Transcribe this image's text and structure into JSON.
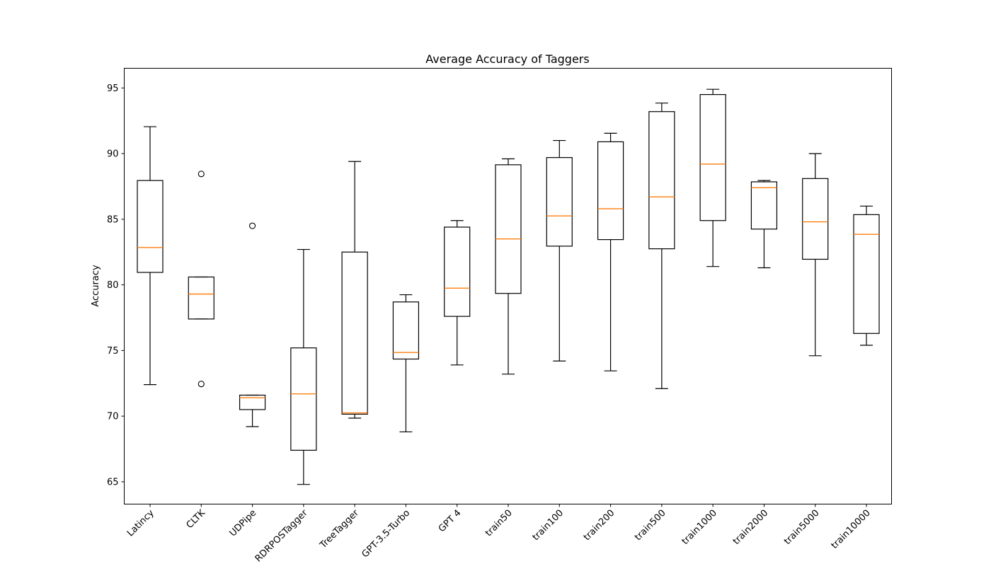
{
  "chart_data": {
    "type": "box",
    "title": "Average Accuracy of Taggers",
    "xlabel": "",
    "ylabel": "Accuracy",
    "ylim": [
      63.3,
      96.5
    ],
    "yticks": [
      65,
      70,
      75,
      80,
      85,
      90,
      95
    ],
    "grid": false,
    "colors": {
      "box": "#000000",
      "median": "#ff7f0e",
      "outlier": "#000000"
    },
    "categories": [
      "Latincy",
      "CLTK",
      "UDPipe",
      "RDRPOSTagger",
      "TreeTagger",
      "GPT-3.5-Turbo",
      "GPT 4",
      "train50",
      "train100",
      "train200",
      "train500",
      "train1000",
      "train2000",
      "train5000",
      "train10000"
    ],
    "boxes": [
      {
        "whisker_low": 72.4,
        "q1": 80.95,
        "median": 82.85,
        "q3": 87.95,
        "whisker_high": 92.05,
        "outliers": []
      },
      {
        "whisker_low": 77.4,
        "q1": 77.4,
        "median": 79.3,
        "q3": 80.6,
        "whisker_high": 80.6,
        "outliers": [
          88.45,
          72.45
        ]
      },
      {
        "whisker_low": 69.2,
        "q1": 70.5,
        "median": 71.4,
        "q3": 71.6,
        "whisker_high": 71.6,
        "outliers": [
          84.5
        ]
      },
      {
        "whisker_low": 64.8,
        "q1": 67.4,
        "median": 71.7,
        "q3": 75.2,
        "whisker_high": 82.7,
        "outliers": []
      },
      {
        "whisker_low": 69.85,
        "q1": 70.15,
        "median": 70.25,
        "q3": 82.5,
        "whisker_high": 89.4,
        "outliers": []
      },
      {
        "whisker_low": 68.8,
        "q1": 74.35,
        "median": 74.85,
        "q3": 78.7,
        "whisker_high": 79.25,
        "outliers": []
      },
      {
        "whisker_low": 73.9,
        "q1": 77.6,
        "median": 79.75,
        "q3": 84.4,
        "whisker_high": 84.9,
        "outliers": []
      },
      {
        "whisker_low": 73.2,
        "q1": 79.35,
        "median": 83.5,
        "q3": 89.15,
        "whisker_high": 89.6,
        "outliers": []
      },
      {
        "whisker_low": 74.2,
        "q1": 82.95,
        "median": 85.25,
        "q3": 89.7,
        "whisker_high": 91.0,
        "outliers": []
      },
      {
        "whisker_low": 73.45,
        "q1": 83.45,
        "median": 85.8,
        "q3": 90.9,
        "whisker_high": 91.55,
        "outliers": []
      },
      {
        "whisker_low": 72.1,
        "q1": 82.75,
        "median": 86.7,
        "q3": 93.2,
        "whisker_high": 93.85,
        "outliers": []
      },
      {
        "whisker_low": 81.4,
        "q1": 84.9,
        "median": 89.2,
        "q3": 94.5,
        "whisker_high": 94.9,
        "outliers": []
      },
      {
        "whisker_low": 81.3,
        "q1": 84.25,
        "median": 87.4,
        "q3": 87.85,
        "whisker_high": 87.95,
        "outliers": []
      },
      {
        "whisker_low": 74.6,
        "q1": 81.95,
        "median": 84.8,
        "q3": 88.1,
        "whisker_high": 90.0,
        "outliers": []
      },
      {
        "whisker_low": 75.4,
        "q1": 76.3,
        "median": 83.85,
        "q3": 85.35,
        "whisker_high": 86.0,
        "outliers": []
      }
    ]
  }
}
